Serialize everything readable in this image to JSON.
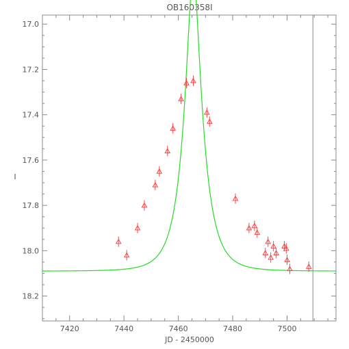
{
  "chart_data": {
    "type": "scatter",
    "title": "OB160358I",
    "xlabel": "JD - 2450000",
    "ylabel": "I",
    "xlim": [
      7410,
      7518
    ],
    "ylim": [
      18.31,
      16.96
    ],
    "y_inverted": true,
    "grid": false,
    "x_ticks": [
      7420,
      7440,
      7460,
      7480,
      7500
    ],
    "y_ticks": [
      17.0,
      17.2,
      17.4,
      17.6,
      17.8,
      18.0,
      18.2
    ],
    "x_tick_labels": [
      "7420",
      "7440",
      "7460",
      "7480",
      "7500"
    ],
    "y_tick_labels": [
      "17.0",
      "17.2",
      "17.4",
      "17.6",
      "17.8",
      "18.0",
      "18.2"
    ],
    "vertical_line_x": 7509.5,
    "colors": {
      "points": "#ff4444",
      "model": "#22dd22",
      "axes": "#888888",
      "vline": "#888888"
    },
    "points": [
      {
        "x": 7438,
        "y": 17.96,
        "err": 0.02
      },
      {
        "x": 7441,
        "y": 18.02,
        "err": 0.02
      },
      {
        "x": 7445,
        "y": 17.9,
        "err": 0.02
      },
      {
        "x": 7447.5,
        "y": 17.8,
        "err": 0.02
      },
      {
        "x": 7451.5,
        "y": 17.71,
        "err": 0.02
      },
      {
        "x": 7453,
        "y": 17.65,
        "err": 0.02
      },
      {
        "x": 7456,
        "y": 17.56,
        "err": 0.02
      },
      {
        "x": 7458,
        "y": 17.46,
        "err": 0.02
      },
      {
        "x": 7461,
        "y": 17.33,
        "err": 0.02
      },
      {
        "x": 7463,
        "y": 17.26,
        "err": 0.02
      },
      {
        "x": 7465.5,
        "y": 17.25,
        "err": 0.02
      },
      {
        "x": 7470.5,
        "y": 17.39,
        "err": 0.02
      },
      {
        "x": 7471.5,
        "y": 17.43,
        "err": 0.02
      },
      {
        "x": 7481,
        "y": 17.77,
        "err": 0.02
      },
      {
        "x": 7486,
        "y": 17.9,
        "err": 0.02
      },
      {
        "x": 7488,
        "y": 17.89,
        "err": 0.02
      },
      {
        "x": 7489,
        "y": 17.92,
        "err": 0.02
      },
      {
        "x": 7492,
        "y": 18.01,
        "err": 0.02
      },
      {
        "x": 7493,
        "y": 17.96,
        "err": 0.02
      },
      {
        "x": 7494,
        "y": 18.03,
        "err": 0.02
      },
      {
        "x": 7495,
        "y": 17.98,
        "err": 0.02
      },
      {
        "x": 7496,
        "y": 18.01,
        "err": 0.02
      },
      {
        "x": 7499,
        "y": 17.98,
        "err": 0.02
      },
      {
        "x": 7499.7,
        "y": 17.99,
        "err": 0.02
      },
      {
        "x": 7500,
        "y": 18.04,
        "err": 0.02
      },
      {
        "x": 7501,
        "y": 18.08,
        "err": 0.02
      },
      {
        "x": 7508,
        "y": 18.07,
        "err": 0.02
      }
    ],
    "model": {
      "t0": 7465.5,
      "tE": 6.8,
      "u0": 0.31,
      "I_base": 18.09,
      "sample_step": 0.4
    }
  }
}
